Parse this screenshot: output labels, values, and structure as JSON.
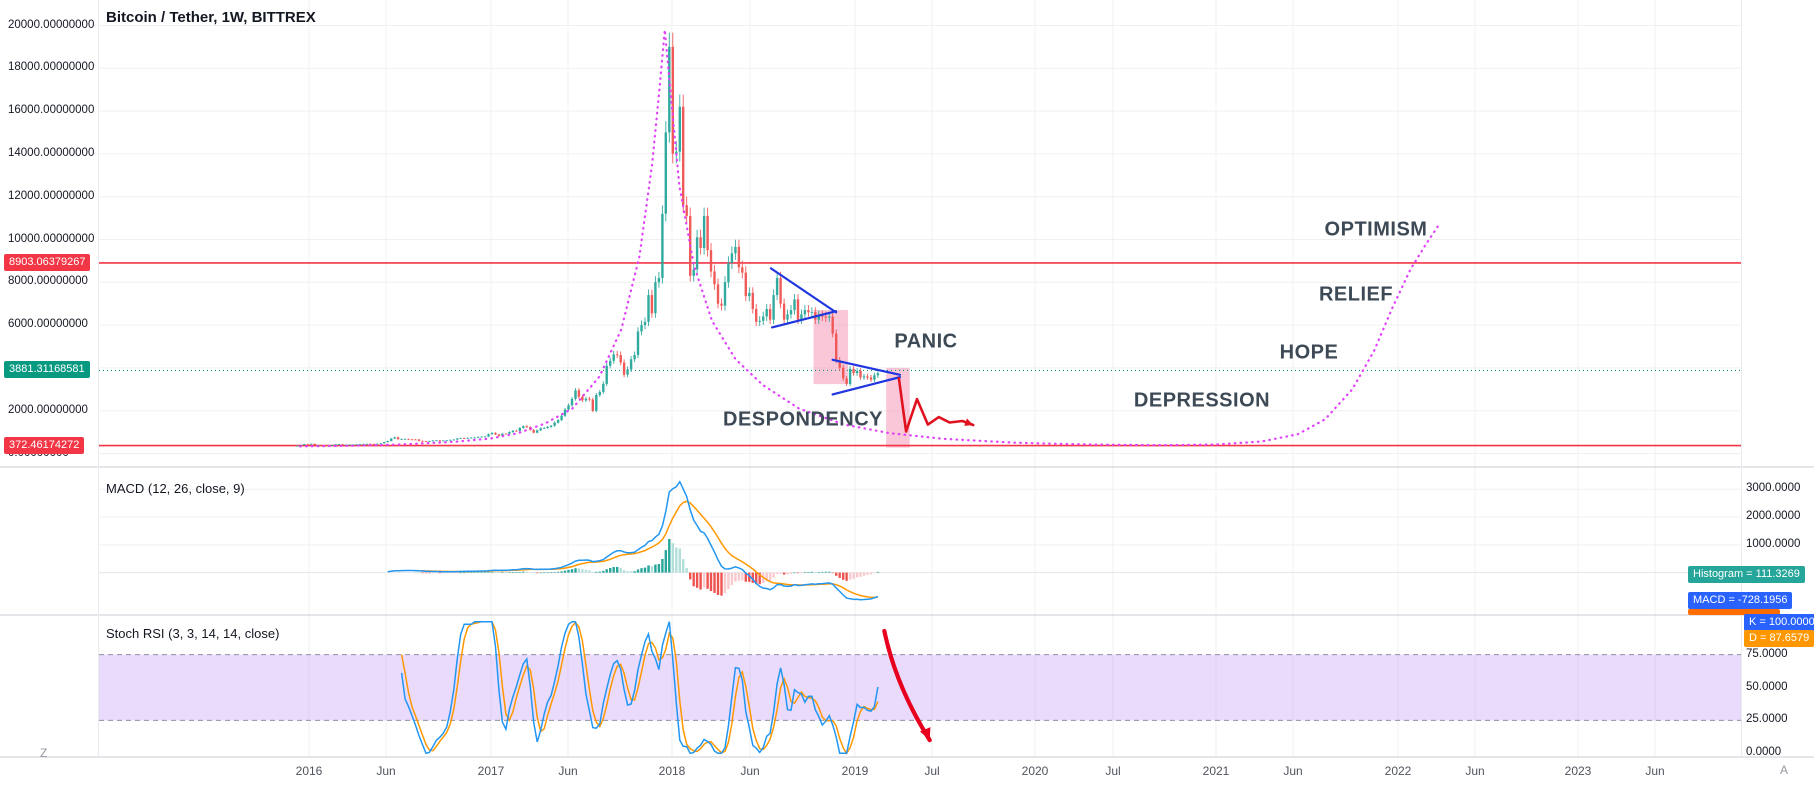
{
  "title": {
    "symbol": "Bitcoin / Tether, 1W, BITTREX"
  },
  "corners": {
    "bottom_left": "Z",
    "bottom_right": "A"
  },
  "appearance": {
    "up": "#26a69a",
    "down": "#ef5350",
    "level_red": "#f23645",
    "level_teal": "#089981",
    "macd_line": "#2196f3",
    "signal_line": "#ff9800",
    "k_line": "#2196f3",
    "d_line": "#ff9800",
    "hist_pos": "#26a69a",
    "hist_pos_weak": "#b2dfdb",
    "hist_neg": "#ef5350",
    "hist_neg_weak": "#f8c9cd",
    "cycle_curve": "#e040fb",
    "pattern_blue": "#1f35e0",
    "projection_red": "#e0121f",
    "stoch_arrow": "#e8001f",
    "band_fill": "rgba(160,85,235,0.22)",
    "zone_pink": "rgba(244,143,177,0.5)"
  },
  "panes": {
    "price": {
      "axis_labels": [
        {
          "text": "20000.00000000",
          "value": 20000
        },
        {
          "text": "18000.00000000",
          "value": 18000
        },
        {
          "text": "16000.00000000",
          "value": 16000
        },
        {
          "text": "14000.00000000",
          "value": 14000
        },
        {
          "text": "12000.00000000",
          "value": 12000
        },
        {
          "text": "10000.00000000",
          "value": 10000
        },
        {
          "text": "8000.00000000",
          "value": 8000
        },
        {
          "text": "6000.00000000",
          "value": 6000
        },
        {
          "text": "2000.00000000",
          "value": 2000
        },
        {
          "text": "0.00000000",
          "value": 0
        }
      ],
      "level_lines": [
        {
          "label": "8903.06379267",
          "value": 8903.06379267,
          "color": "#f23645",
          "style": "solid"
        },
        {
          "label": "3881.31168581",
          "value": 3881.31168581,
          "color": "#089981",
          "style": "dotted"
        },
        {
          "label": "372.46174272",
          "value": 372.46174272,
          "color": "#f23645",
          "style": "solid"
        }
      ],
      "annotations": [
        {
          "text": "PANIC",
          "year": 2019.4,
          "price": 5190
        },
        {
          "text": "DESPONDENCY",
          "year": 2018.72,
          "price": 1568
        },
        {
          "text": "DEPRESSION",
          "year": 2020.92,
          "price": 2434
        },
        {
          "text": "HOPE",
          "year": 2021.51,
          "price": 4704
        },
        {
          "text": "RELIEF",
          "year": 2021.77,
          "price": 7406
        },
        {
          "text": "OPTIMISM",
          "year": 2021.88,
          "price": 10433
        }
      ],
      "drawings": {
        "pattern_lines": [
          [
            2018.545,
            8650,
            2018.904,
            6595
          ],
          [
            2018.551,
            5893,
            2018.904,
            6650
          ],
          [
            2018.885,
            4379,
            2019.256,
            3677
          ],
          [
            2018.885,
            2758,
            2019.256,
            3569
          ]
        ],
        "highlight_zones": [
          {
            "year_range": [
              2018.78,
              2018.97
            ],
            "price_range": [
              3244,
              6704
            ]
          },
          {
            "year_range": [
              2019.18,
              2019.31
            ],
            "price_range": [
              272,
              4000
            ]
          }
        ],
        "projection_path": [
          [
            2019.25,
            3510
          ],
          [
            2019.29,
            1030
          ],
          [
            2019.35,
            2540
          ],
          [
            2019.41,
            1350
          ],
          [
            2019.47,
            1700
          ],
          [
            2019.53,
            1450
          ],
          [
            2019.6,
            1520
          ],
          [
            2019.66,
            1330
          ]
        ],
        "cycle_curve": [
          [
            2015.95,
            330
          ],
          [
            2016.2,
            355
          ],
          [
            2016.5,
            420
          ],
          [
            2016.8,
            545
          ],
          [
            2017.0,
            700
          ],
          [
            2017.15,
            950
          ],
          [
            2017.3,
            1400
          ],
          [
            2017.45,
            2100
          ],
          [
            2017.6,
            3600
          ],
          [
            2017.72,
            5800
          ],
          [
            2017.82,
            9200
          ],
          [
            2017.89,
            13500
          ],
          [
            2017.93,
            17000
          ],
          [
            2017.96,
            19800
          ],
          [
            2017.99,
            17000
          ],
          [
            2018.04,
            12500
          ],
          [
            2018.12,
            8800
          ],
          [
            2018.22,
            6200
          ],
          [
            2018.35,
            4400
          ],
          [
            2018.5,
            3200
          ],
          [
            2018.7,
            2100
          ],
          [
            2018.95,
            1350
          ],
          [
            2019.2,
            950
          ],
          [
            2019.5,
            680
          ],
          [
            2019.9,
            500
          ],
          [
            2020.3,
            420
          ],
          [
            2020.7,
            390
          ],
          [
            2021.0,
            420
          ],
          [
            2021.25,
            560
          ],
          [
            2021.45,
            900
          ],
          [
            2021.6,
            1600
          ],
          [
            2021.75,
            3000
          ],
          [
            2021.87,
            4800
          ],
          [
            2021.97,
            6800
          ],
          [
            2022.07,
            8600
          ],
          [
            2022.15,
            9700
          ],
          [
            2022.22,
            10600
          ]
        ]
      }
    },
    "macd": {
      "label": "MACD (12, 26, close, 9)",
      "axis_labels": [
        {
          "text": "3000.0000",
          "value": 3000
        },
        {
          "text": "2000.0000",
          "value": 2000
        },
        {
          "text": "1000.0000",
          "value": 1000
        }
      ],
      "badges": [
        {
          "label": "Histogram",
          "value": "111.3269",
          "color": "#26a69a"
        },
        {
          "label": "MACD",
          "value": "-728.1956",
          "color": "#2962ff"
        }
      ],
      "clipped_badge_color": "#ff6d00"
    },
    "stoch": {
      "label": "Stoch RSI (3, 3, 14, 14, close)",
      "axis_labels": [
        {
          "text": "75.0000",
          "value": 75
        },
        {
          "text": "50.0000",
          "value": 50
        },
        {
          "text": "25.0000",
          "value": 25
        },
        {
          "text": "0.0000",
          "value": 0
        }
      ],
      "badges": [
        {
          "label": "K",
          "value": "100.0000",
          "color": "#2962ff"
        },
        {
          "label": "D",
          "value": "87.6579",
          "color": "#ff9800"
        }
      ],
      "band": [
        25,
        75
      ],
      "drawings": {
        "arrow": [
          [
            2019.17,
            93
          ],
          [
            2019.42,
            10
          ]
        ]
      }
    }
  },
  "chart_data": [
    {
      "type": "candlestick",
      "title": "Bitcoin / Tether, 1W, BITTREX",
      "interval": "1W",
      "x_start_year": 2015.934,
      "note": "weekly closes, open = previous close",
      "ylim": [
        0,
        20600
      ],
      "x_tick_labels": [
        "2016",
        "Jun",
        "2017",
        "Jun",
        "2018",
        "Jun",
        "2019",
        "Jul",
        "2020",
        "Jul",
        "2021",
        "Jun",
        "2022",
        "Jun",
        "2023",
        "Jun"
      ],
      "level_lines": [
        8903.06379267,
        3881.31168581,
        372.46174272
      ],
      "closes": [
        365,
        392,
        438,
        428,
        452,
        388,
        398,
        382,
        372,
        378,
        392,
        428,
        433,
        408,
        413,
        417,
        419,
        423,
        433,
        449,
        451,
        448,
        444,
        457,
        473,
        532,
        582,
        698,
        757,
        667,
        673,
        683,
        661,
        656,
        655,
        591,
        576,
        573,
        579,
        606,
        611,
        601,
        607,
        616,
        636,
        651,
        699,
        713,
        709,
        733,
        737,
        743,
        773,
        783,
        793,
        903,
        963,
        893,
        823,
        923,
        921,
        1003,
        1063,
        1053,
        1193,
        1273,
        1233,
        1103,
        973,
        1083,
        1183,
        1193,
        1243,
        1293,
        1443,
        1563,
        1763,
        2053,
        2253,
        2553,
        2953,
        2653,
        2483,
        2563,
        2523,
        1993,
        2733,
        2873,
        3253,
        4103,
        4333,
        4633,
        4603,
        4253,
        3683,
        3933,
        4403,
        4603,
        5703,
        6003,
        6153,
        7403,
        6553,
        8003,
        8203,
        11203,
        15003,
        19003,
        14003,
        14103,
        16203,
        11603,
        11103,
        8303,
        8603,
        10103,
        9603,
        11103,
        9503,
        8503,
        7903,
        7003,
        6903,
        8003,
        8903,
        9353,
        9653,
        8703,
        8453,
        7353,
        7503,
        6753,
        6153,
        6203,
        6403,
        6753,
        6253,
        7403,
        8203,
        7003,
        6253,
        6503,
        6703,
        7203,
        6253,
        6503,
        6703,
        6603,
        6603,
        6253,
        6453,
        6403,
        6353,
        6403,
        5603,
        4353,
        4003,
        3503,
        3253,
        3953,
        3753,
        3853,
        3553,
        3603,
        3553,
        3453,
        3653,
        3753
      ]
    },
    {
      "type": "line",
      "title": "MACD (12, 26, close, 9)",
      "params": [
        12,
        26,
        "close",
        9
      ],
      "computed_from": "closes (EMA12 - EMA26, signal EMA9)",
      "y_tick_labels": [
        "3000.0000",
        "2000.0000",
        "1000.0000"
      ],
      "last_values": {
        "histogram": 111.3269,
        "macd": -728.1956
      }
    },
    {
      "type": "line",
      "title": "Stoch RSI (3, 3, 14, 14, close)",
      "params": [
        3,
        3,
        14,
        14,
        "close"
      ],
      "band": [
        25,
        75
      ],
      "y_tick_labels": [
        "75.0000",
        "50.0000",
        "25.0000",
        "0.0000"
      ],
      "last_values": {
        "k": 100.0,
        "d": 87.6579
      }
    }
  ]
}
